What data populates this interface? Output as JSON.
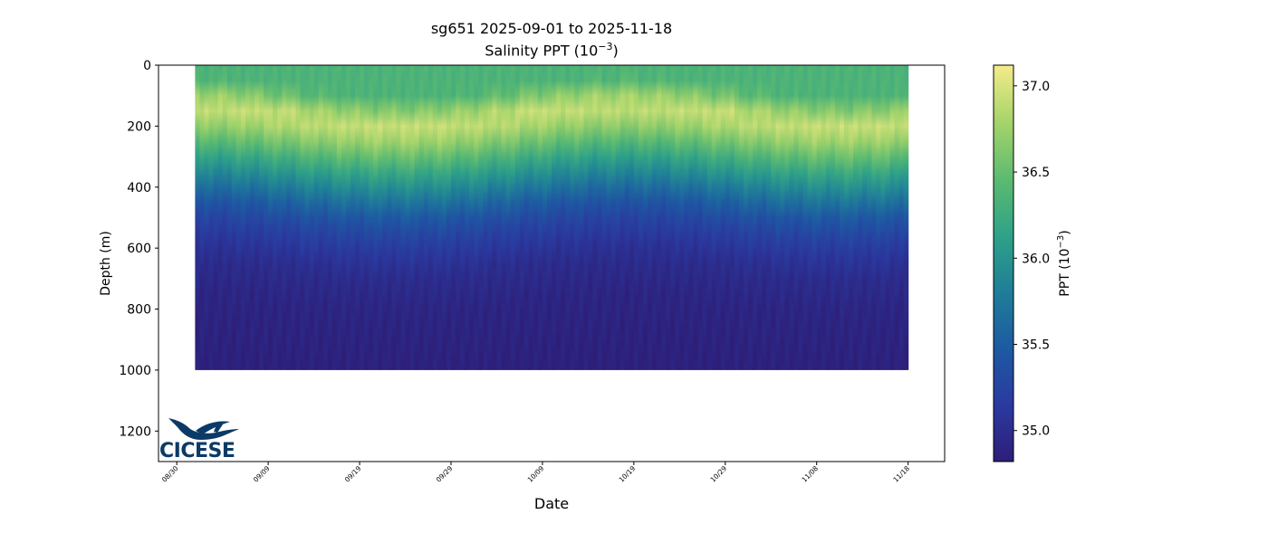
{
  "title_line1": "sg651 2025-09-01 to 2025-11-18",
  "title_line2": "Salinity PPT (10",
  "title_line2_exp": "−3",
  "title_line2_end": ")",
  "colorbar_label": "PPT (10",
  "colorbar_label_exp": "−3",
  "colorbar_label_end": ")",
  "logo_text": "CICESE",
  "chart_data": {
    "type": "heatmap",
    "title": "sg651 2025-09-01 to 2025-11-18",
    "subtitle": "Salinity PPT (10−3)",
    "xlabel": "Date",
    "ylabel": "Depth (m)",
    "x_ticks": [
      "08/30",
      "09/09",
      "09/19",
      "09/29",
      "10/09",
      "10/19",
      "10/29",
      "11/08",
      "11/18"
    ],
    "x_tick_days": [
      -2,
      8,
      18,
      28,
      38,
      48,
      58,
      68,
      78
    ],
    "xlim_days": [
      -4,
      82
    ],
    "y_ticks": [
      0,
      200,
      400,
      600,
      800,
      1000,
      1200
    ],
    "ylim": [
      1300,
      0
    ],
    "data_start_date": "2025-09-01",
    "data_end_date": "2025-11-18",
    "colorbar": {
      "label": "PPT (10−3)",
      "ticks": [
        35.0,
        35.5,
        36.0,
        36.5,
        37.0
      ],
      "range": [
        34.82,
        37.12
      ],
      "colormap": [
        "#2d1e78",
        "#2a3aa0",
        "#1d5aa2",
        "#1f7e98",
        "#2fa287",
        "#5dbb70",
        "#a6d46a",
        "#f4eb8a"
      ]
    },
    "salinity_profile": {
      "depth_m": [
        0,
        80,
        110,
        160,
        200,
        260,
        320,
        400,
        470,
        550,
        650,
        780,
        1000
      ],
      "salinity": [
        36.35,
        36.35,
        36.6,
        36.95,
        36.85,
        36.55,
        36.2,
        35.8,
        35.45,
        35.2,
        35.0,
        34.9,
        34.85
      ]
    },
    "max_depth_m": 1000
  }
}
